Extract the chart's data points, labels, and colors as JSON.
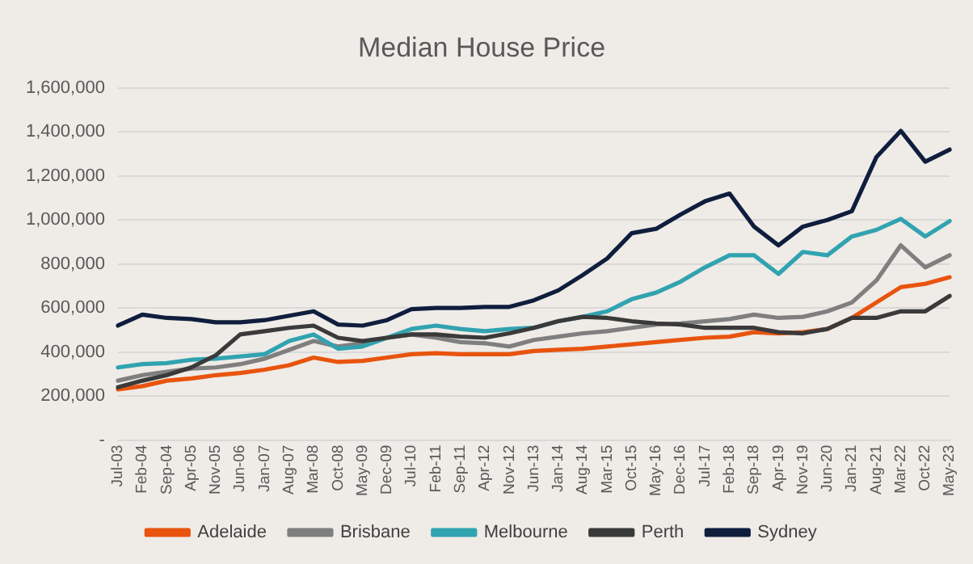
{
  "chart_data": {
    "type": "line",
    "title": "Median House Price",
    "categories": [
      "Jul-03",
      "Feb-04",
      "Sep-04",
      "Apr-05",
      "Nov-05",
      "Jun-06",
      "Jan-07",
      "Aug-07",
      "Mar-08",
      "Oct-08",
      "May-09",
      "Dec-09",
      "Jul-10",
      "Feb-11",
      "Sep-11",
      "Apr-12",
      "Nov-12",
      "Jun-13",
      "Jan-14",
      "Aug-14",
      "Mar-15",
      "Oct-15",
      "May-16",
      "Dec-16",
      "Jul-17",
      "Feb-18",
      "Sep-18",
      "Apr-19",
      "Nov-19",
      "Jun-20",
      "Jan-21",
      "Aug-21",
      "Mar-22",
      "Oct-22",
      "May-23"
    ],
    "series": [
      {
        "name": "Adelaide",
        "color": "#e8540e",
        "values": [
          230000,
          245000,
          270000,
          280000,
          295000,
          305000,
          320000,
          340000,
          375000,
          355000,
          360000,
          375000,
          390000,
          395000,
          390000,
          390000,
          390000,
          405000,
          410000,
          415000,
          425000,
          435000,
          445000,
          455000,
          465000,
          470000,
          490000,
          485000,
          490000,
          505000,
          555000,
          625000,
          695000,
          710000,
          740000
        ]
      },
      {
        "name": "Brisbane",
        "color": "#7f7f7f",
        "values": [
          270000,
          295000,
          310000,
          325000,
          330000,
          345000,
          370000,
          410000,
          450000,
          425000,
          440000,
          465000,
          480000,
          465000,
          445000,
          440000,
          425000,
          455000,
          470000,
          485000,
          495000,
          510000,
          525000,
          530000,
          540000,
          550000,
          570000,
          555000,
          560000,
          585000,
          625000,
          725000,
          885000,
          785000,
          840000
        ]
      },
      {
        "name": "Melbourne",
        "color": "#31a3b0",
        "values": [
          330000,
          345000,
          350000,
          365000,
          370000,
          380000,
          390000,
          450000,
          480000,
          415000,
          425000,
          465000,
          505000,
          520000,
          505000,
          495000,
          505000,
          510000,
          540000,
          560000,
          585000,
          640000,
          670000,
          720000,
          785000,
          840000,
          840000,
          755000,
          855000,
          840000,
          925000,
          955000,
          1005000,
          925000,
          995000
        ]
      },
      {
        "name": "Perth",
        "color": "#3a3a3a",
        "values": [
          240000,
          270000,
          295000,
          330000,
          385000,
          480000,
          495000,
          510000,
          520000,
          465000,
          450000,
          465000,
          480000,
          480000,
          470000,
          465000,
          485000,
          510000,
          540000,
          560000,
          555000,
          540000,
          530000,
          525000,
          510000,
          510000,
          510000,
          490000,
          485000,
          505000,
          555000,
          555000,
          585000,
          585000,
          655000
        ]
      },
      {
        "name": "Sydney",
        "color": "#0f1e3d",
        "values": [
          520000,
          570000,
          555000,
          550000,
          535000,
          535000,
          545000,
          565000,
          585000,
          525000,
          520000,
          545000,
          595000,
          600000,
          600000,
          605000,
          605000,
          635000,
          680000,
          750000,
          825000,
          940000,
          960000,
          1025000,
          1085000,
          1120000,
          970000,
          885000,
          970000,
          1000000,
          1040000,
          1285000,
          1405000,
          1265000,
          1320000
        ]
      }
    ],
    "ylim": [
      0,
      1600000
    ],
    "yticks": [
      {
        "value": 0,
        "label": "-"
      },
      {
        "value": 200000,
        "label": "200,000"
      },
      {
        "value": 400000,
        "label": "400,000"
      },
      {
        "value": 600000,
        "label": "600,000"
      },
      {
        "value": 800000,
        "label": "800,000"
      },
      {
        "value": 1000000,
        "label": "1,000,000"
      },
      {
        "value": 1200000,
        "label": "1,200,000"
      },
      {
        "value": 1400000,
        "label": "1,400,000"
      },
      {
        "value": 1600000,
        "label": "1,600,000"
      }
    ],
    "grid": "y",
    "legend": "bottom",
    "marker": "none",
    "line_style": "solid"
  }
}
